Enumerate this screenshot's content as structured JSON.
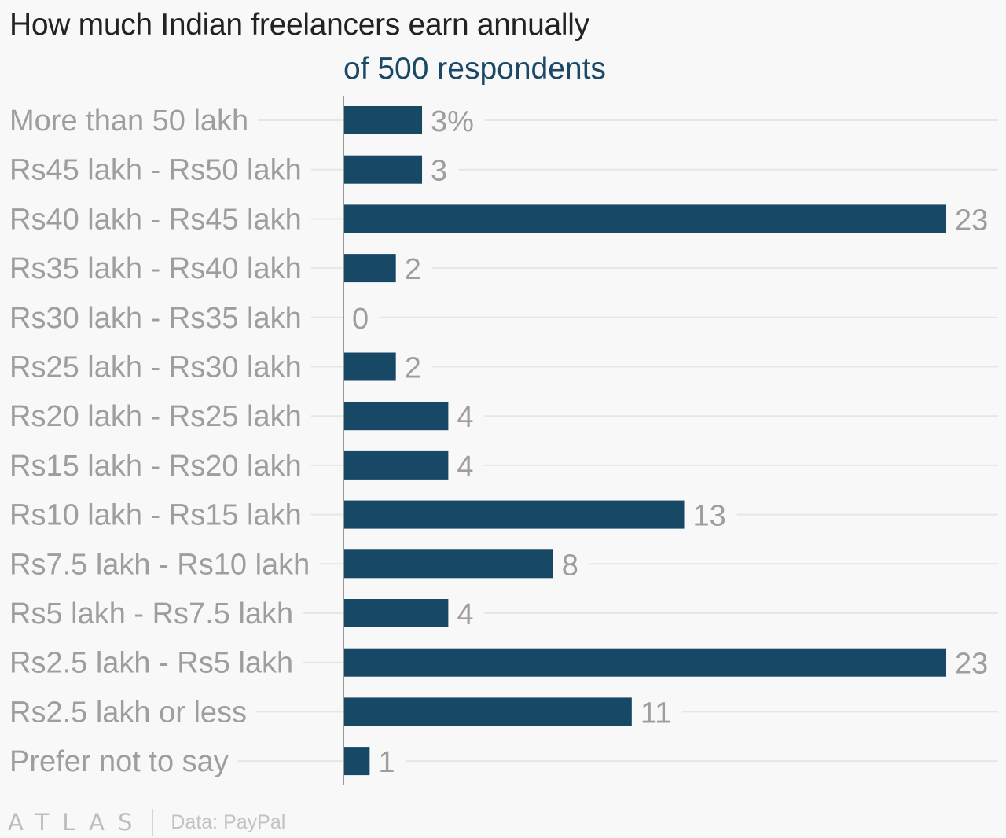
{
  "title": "How much Indian freelancers earn annually",
  "subtitle": "of 500 respondents",
  "footer": {
    "logo": "ATLAS",
    "source": "Data: PayPal"
  },
  "colors": {
    "bar": "#174866",
    "category_label": "#9e9e9e",
    "value_label": "#9e9e9e",
    "gridline": "#e6e6e6",
    "axis": "#9a9a9a"
  },
  "chart_data": {
    "type": "bar",
    "orientation": "horizontal",
    "title": "How much Indian freelancers earn annually",
    "subtitle": "of 500 respondents",
    "unit": "%",
    "categories": [
      "More than 50 lakh",
      "Rs45 lakh - Rs50 lakh",
      "Rs40 lakh - Rs45 lakh",
      "Rs35 lakh - Rs40 lakh",
      "Rs30 lakh - Rs35 lakh",
      "Rs25 lakh - Rs30 lakh",
      "Rs20 lakh - Rs25 lakh",
      "Rs15 lakh - Rs20 lakh",
      "Rs10 lakh - Rs15 lakh",
      "Rs7.5 lakh - Rs10 lakh",
      "Rs5 lakh - Rs7.5 lakh",
      "Rs2.5 lakh - Rs5 lakh",
      "Rs2.5 lakh or less",
      "Prefer not to say"
    ],
    "values": [
      3,
      3,
      23,
      2,
      0,
      2,
      4,
      4,
      13,
      8,
      4,
      23,
      11,
      1
    ],
    "value_labels": [
      "3%",
      "3",
      "23",
      "2",
      "0",
      "2",
      "4",
      "4",
      "13",
      "8",
      "4",
      "23",
      "11",
      "1"
    ],
    "xlim": [
      0,
      23
    ],
    "grid": true,
    "legend": "none"
  }
}
